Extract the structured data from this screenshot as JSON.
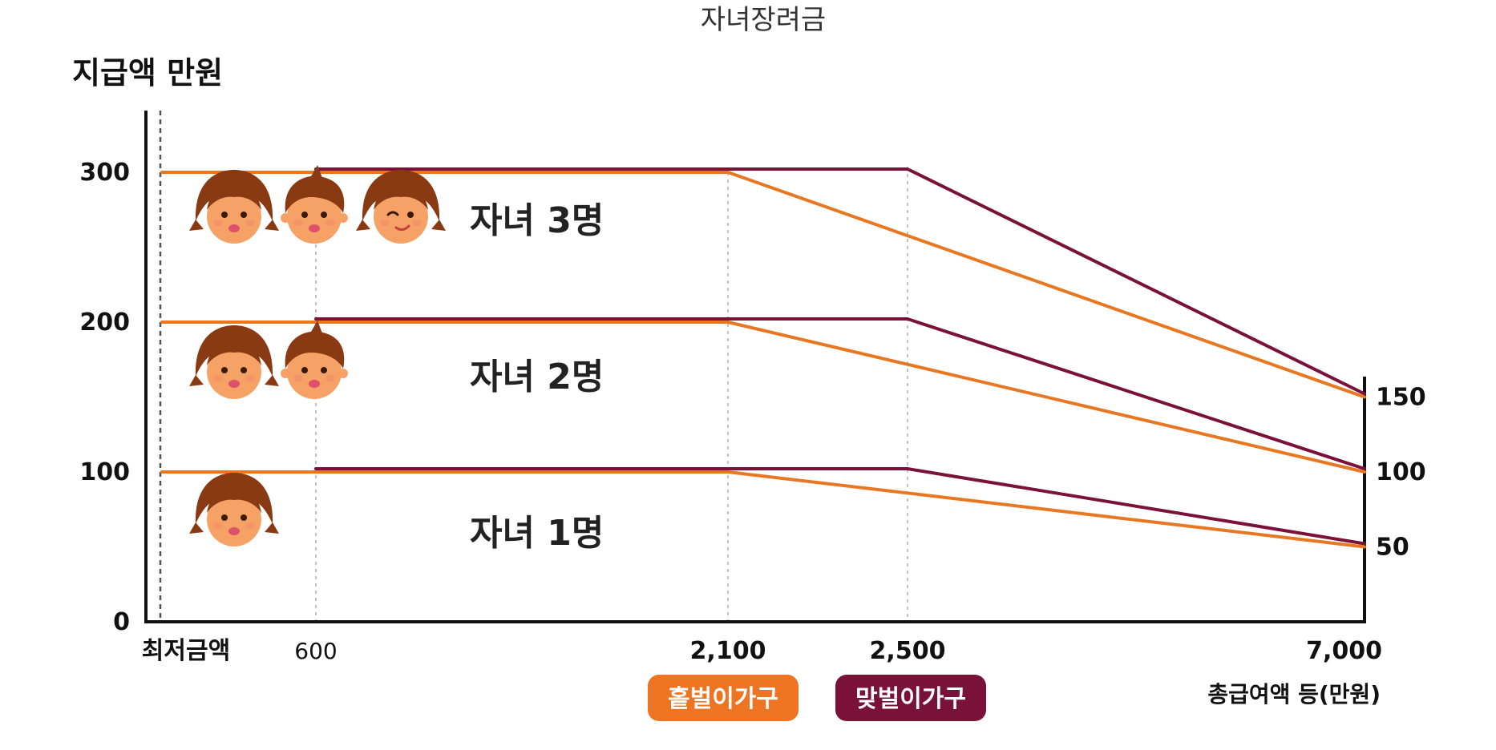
{
  "chart_data": {
    "type": "line",
    "title": "자녀장려금",
    "ylabel": "지급액 만원",
    "xlabel": "총급여액 등(만원)",
    "x_ticks": [
      "최저금액",
      "600",
      "2,100",
      "2,500",
      "7,000"
    ],
    "x_values": [
      0,
      600,
      2100,
      2500,
      7000
    ],
    "xlim": [
      0,
      7000
    ],
    "y_ticks": [
      "0",
      "100",
      "200",
      "300"
    ],
    "y_tick_values": [
      0,
      100,
      200,
      300
    ],
    "ylim": [
      0,
      330
    ],
    "right_ticks": [
      "150",
      "100",
      "50"
    ],
    "right_tick_values": [
      150,
      100,
      50
    ],
    "legend_position": "bottom-center",
    "colors": {
      "single": "#E87722",
      "dual": "#7A1238",
      "grid": "#bbbbbb",
      "axis": "#111111",
      "legend_single_bg": "#EE7422",
      "legend_dual_bg": "#7A1238"
    },
    "legend": [
      {
        "key": "single",
        "label": "홑벌이가구"
      },
      {
        "key": "dual",
        "label": "맞벌이가구"
      }
    ],
    "groups": [
      {
        "label": "자녀 3명",
        "children_icons": [
          "girl-face-icon",
          "boy-face-icon",
          "winking-girl-face-icon"
        ],
        "single": {
          "x": [
            0,
            2100,
            7000
          ],
          "y": [
            300,
            300,
            150
          ]
        },
        "dual": {
          "x": [
            600,
            2500,
            7000
          ],
          "y": [
            300,
            300,
            150
          ]
        }
      },
      {
        "label": "자녀 2명",
        "children_icons": [
          "girl-face-icon",
          "boy-face-icon"
        ],
        "single": {
          "x": [
            0,
            2100,
            7000
          ],
          "y": [
            200,
            200,
            100
          ]
        },
        "dual": {
          "x": [
            600,
            2500,
            7000
          ],
          "y": [
            200,
            200,
            100
          ]
        }
      },
      {
        "label": "자녀 1명",
        "children_icons": [
          "girl-face-icon"
        ],
        "single": {
          "x": [
            0,
            2100,
            7000
          ],
          "y": [
            100,
            100,
            50
          ]
        },
        "dual": {
          "x": [
            600,
            2500,
            7000
          ],
          "y": [
            100,
            100,
            50
          ]
        }
      }
    ]
  }
}
